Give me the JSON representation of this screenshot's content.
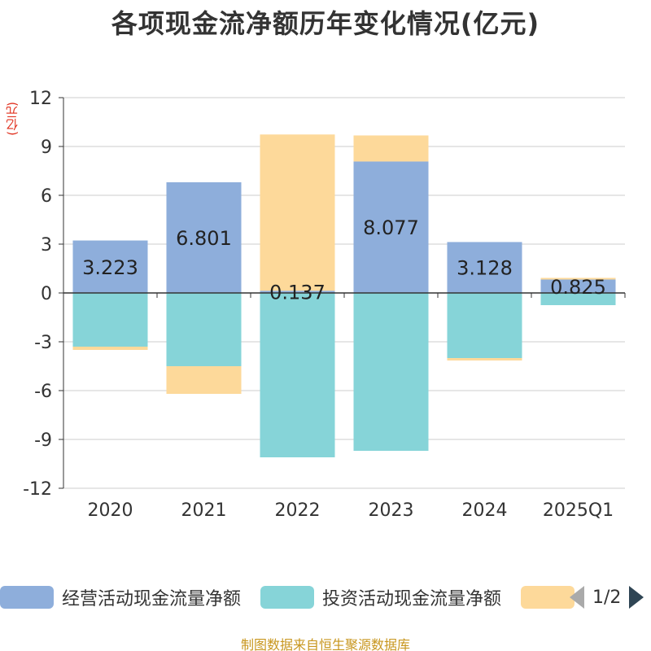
{
  "title": "各项现金流净额历年变化情况(亿元)",
  "unit_label": "(亿元)",
  "source_text": "制图数据来自恒生聚源数据库",
  "legend": {
    "items": [
      {
        "label": "经营活动现金流量净额",
        "color": "#8eaedb"
      },
      {
        "label": "投资活动现金流量净额",
        "color": "#86d4d8"
      },
      {
        "label": "",
        "color": "#fdd99a"
      }
    ],
    "pager": "1/2"
  },
  "chart_data": {
    "type": "bar",
    "stacked": true,
    "categories": [
      "2020",
      "2021",
      "2022",
      "2023",
      "2024",
      "2025Q1"
    ],
    "ylim": [
      -12,
      12
    ],
    "yticks": [
      12,
      9,
      6,
      3,
      0,
      -3,
      -6,
      -9,
      -12
    ],
    "grid": true,
    "legend_position": "bottom",
    "series": [
      {
        "name": "经营活动现金流量净额",
        "color": "#8eaedb",
        "values": [
          3.223,
          6.801,
          0.137,
          8.077,
          3.128,
          0.825
        ],
        "labels": [
          "3.223",
          "6.801",
          "0.137",
          "8.077",
          "3.128",
          "0.825"
        ]
      },
      {
        "name": "投资活动现金流量净额",
        "color": "#86d4d8",
        "values": [
          -3.3,
          -4.5,
          -10.1,
          -9.7,
          -4.0,
          -0.75
        ]
      },
      {
        "color": "#fdd99a",
        "values": [
          -0.2,
          -1.7,
          9.6,
          1.6,
          -0.15,
          0.1
        ]
      }
    ]
  }
}
